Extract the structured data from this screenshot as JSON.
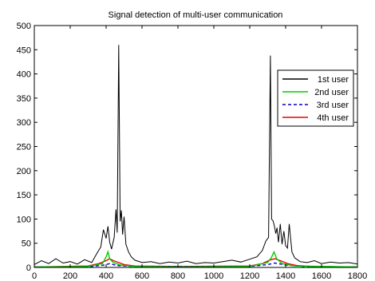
{
  "chart_data": {
    "type": "line",
    "title": "Signal detection of multi-user communication",
    "xlabel": "",
    "ylabel": "",
    "xlim": [
      0,
      1800
    ],
    "ylim": [
      0,
      500
    ],
    "x_ticks": [
      0,
      200,
      400,
      600,
      800,
      1000,
      1200,
      1400,
      1600,
      1800
    ],
    "y_ticks": [
      0,
      50,
      100,
      150,
      200,
      250,
      300,
      350,
      400,
      450,
      500
    ],
    "grid": false,
    "legend_position": "top-right",
    "series": [
      {
        "name": "1st user",
        "color": "#000000",
        "style": "solid",
        "points": [
          [
            0,
            6
          ],
          [
            40,
            14
          ],
          [
            80,
            8
          ],
          [
            120,
            18
          ],
          [
            160,
            9
          ],
          [
            200,
            12
          ],
          [
            240,
            7
          ],
          [
            280,
            16
          ],
          [
            320,
            10
          ],
          [
            350,
            30
          ],
          [
            370,
            42
          ],
          [
            385,
            78
          ],
          [
            400,
            60
          ],
          [
            410,
            85
          ],
          [
            420,
            52
          ],
          [
            430,
            38
          ],
          [
            445,
            62
          ],
          [
            455,
            120
          ],
          [
            462,
            72
          ],
          [
            470,
            460
          ],
          [
            478,
            95
          ],
          [
            485,
            118
          ],
          [
            492,
            68
          ],
          [
            500,
            105
          ],
          [
            510,
            48
          ],
          [
            525,
            32
          ],
          [
            540,
            22
          ],
          [
            560,
            15
          ],
          [
            600,
            10
          ],
          [
            650,
            12
          ],
          [
            700,
            8
          ],
          [
            750,
            11
          ],
          [
            800,
            9
          ],
          [
            850,
            13
          ],
          [
            900,
            8
          ],
          [
            950,
            10
          ],
          [
            1000,
            9
          ],
          [
            1050,
            12
          ],
          [
            1100,
            15
          ],
          [
            1150,
            11
          ],
          [
            1200,
            17
          ],
          [
            1240,
            22
          ],
          [
            1270,
            35
          ],
          [
            1290,
            55
          ],
          [
            1305,
            62
          ],
          [
            1315,
            438
          ],
          [
            1322,
            100
          ],
          [
            1330,
            96
          ],
          [
            1338,
            85
          ],
          [
            1345,
            70
          ],
          [
            1352,
            82
          ],
          [
            1360,
            52
          ],
          [
            1370,
            90
          ],
          [
            1380,
            48
          ],
          [
            1390,
            75
          ],
          [
            1400,
            45
          ],
          [
            1410,
            40
          ],
          [
            1420,
            90
          ],
          [
            1435,
            32
          ],
          [
            1450,
            20
          ],
          [
            1480,
            12
          ],
          [
            1520,
            10
          ],
          [
            1560,
            14
          ],
          [
            1600,
            8
          ],
          [
            1650,
            11
          ],
          [
            1700,
            9
          ],
          [
            1750,
            10
          ],
          [
            1800,
            7
          ]
        ]
      },
      {
        "name": "2nd user",
        "color": "#00cc00",
        "style": "solid",
        "points": [
          [
            0,
            1
          ],
          [
            300,
            2
          ],
          [
            380,
            8
          ],
          [
            400,
            22
          ],
          [
            410,
            32
          ],
          [
            420,
            18
          ],
          [
            440,
            10
          ],
          [
            480,
            5
          ],
          [
            560,
            2
          ],
          [
            800,
            1
          ],
          [
            1200,
            2
          ],
          [
            1300,
            10
          ],
          [
            1320,
            20
          ],
          [
            1335,
            32
          ],
          [
            1350,
            18
          ],
          [
            1380,
            8
          ],
          [
            1450,
            3
          ],
          [
            1800,
            1
          ]
        ]
      },
      {
        "name": "3rd user",
        "color": "#0000cc",
        "style": "dashed",
        "points": [
          [
            0,
            1
          ],
          [
            320,
            2
          ],
          [
            390,
            5
          ],
          [
            420,
            8
          ],
          [
            460,
            4
          ],
          [
            550,
            2
          ],
          [
            1200,
            2
          ],
          [
            1300,
            6
          ],
          [
            1340,
            9
          ],
          [
            1400,
            5
          ],
          [
            1500,
            2
          ],
          [
            1800,
            1
          ]
        ]
      },
      {
        "name": "4th user",
        "color": "#ee0000",
        "style": "solid",
        "points": [
          [
            0,
            1
          ],
          [
            300,
            3
          ],
          [
            360,
            8
          ],
          [
            400,
            14
          ],
          [
            420,
            18
          ],
          [
            440,
            14
          ],
          [
            470,
            10
          ],
          [
            500,
            6
          ],
          [
            560,
            3
          ],
          [
            800,
            2
          ],
          [
            1200,
            3
          ],
          [
            1270,
            8
          ],
          [
            1310,
            15
          ],
          [
            1340,
            18
          ],
          [
            1370,
            14
          ],
          [
            1410,
            8
          ],
          [
            1460,
            4
          ],
          [
            1550,
            2
          ],
          [
            1800,
            1
          ]
        ]
      }
    ]
  }
}
